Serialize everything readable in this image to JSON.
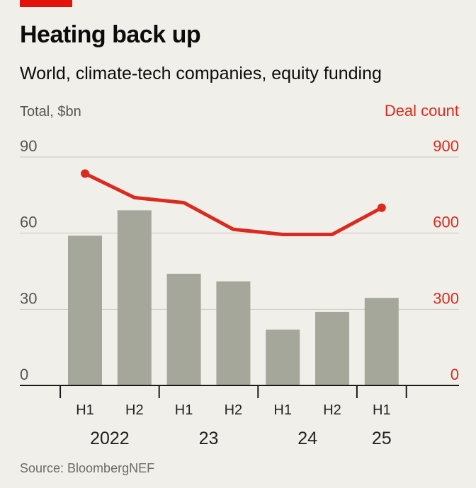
{
  "title": "Heating back up",
  "subtitle": "World, climate-tech companies, equity funding",
  "source": "Source: BloombergNEF",
  "chart_data": {
    "type": "bar",
    "categories": [
      "H1",
      "H2",
      "H1",
      "H2",
      "H1",
      "H2",
      "H1"
    ],
    "years": [
      {
        "label": "2022",
        "start": 0,
        "end": 1
      },
      {
        "label": "23",
        "start": 2,
        "end": 3
      },
      {
        "label": "24",
        "start": 4,
        "end": 5
      },
      {
        "label": "25",
        "start": 6,
        "end": 6
      }
    ],
    "series": [
      {
        "name": "Total, $bn",
        "type": "bar",
        "axis": "left",
        "values": [
          59,
          69,
          44,
          41,
          22,
          29,
          34.5
        ]
      },
      {
        "name": "Deal count",
        "type": "line",
        "axis": "right",
        "values": [
          835,
          740,
          720,
          615,
          595,
          595,
          700
        ]
      }
    ],
    "left_axis": {
      "label": "Total, $bn",
      "ticks": [
        0,
        30,
        60,
        90
      ],
      "ylim": [
        0,
        90
      ]
    },
    "right_axis": {
      "label": "Deal count",
      "ticks": [
        0,
        300,
        600,
        900
      ],
      "ylim": [
        0,
        900
      ]
    },
    "colors": {
      "bar": "#a5a79b",
      "line": "#db2a20",
      "grid": "#c9c8c0",
      "baseline": "#1a1a1a"
    }
  }
}
